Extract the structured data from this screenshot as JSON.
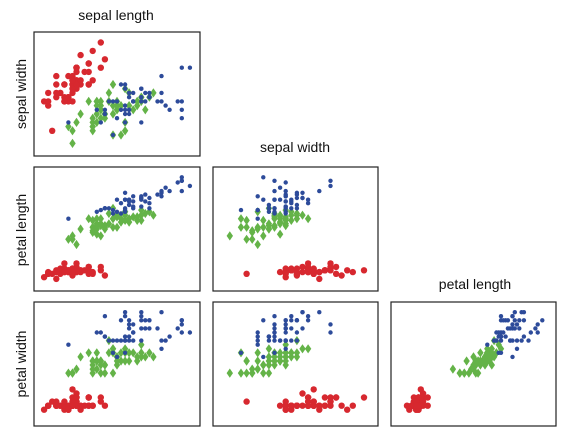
{
  "chart_data": {
    "type": "scatter",
    "layout": "lower-triangular scatterplot matrix",
    "variables": [
      "sepal length",
      "sepal width",
      "petal length",
      "petal width"
    ],
    "column_titles": [
      "sepal length",
      "sepal width",
      "petal length"
    ],
    "row_labels": [
      "sepal width",
      "petal length",
      "petal width"
    ],
    "axis_ticks": "none",
    "grid": false,
    "legend": "none",
    "series": [
      {
        "color": "#d7282f",
        "marker": "circle",
        "points": [
          [
            5.1,
            3.5,
            1.4,
            0.2
          ],
          [
            4.9,
            3.0,
            1.4,
            0.2
          ],
          [
            4.7,
            3.2,
            1.3,
            0.2
          ],
          [
            4.6,
            3.1,
            1.5,
            0.2
          ],
          [
            5.0,
            3.6,
            1.4,
            0.2
          ],
          [
            5.4,
            3.9,
            1.7,
            0.4
          ],
          [
            4.6,
            3.4,
            1.4,
            0.3
          ],
          [
            5.0,
            3.4,
            1.5,
            0.2
          ],
          [
            4.4,
            2.9,
            1.4,
            0.2
          ],
          [
            4.9,
            3.1,
            1.5,
            0.1
          ],
          [
            5.4,
            3.7,
            1.5,
            0.2
          ],
          [
            4.8,
            3.4,
            1.6,
            0.2
          ],
          [
            4.8,
            3.0,
            1.4,
            0.1
          ],
          [
            4.3,
            3.0,
            1.1,
            0.1
          ],
          [
            5.8,
            4.0,
            1.2,
            0.2
          ],
          [
            5.7,
            4.4,
            1.5,
            0.4
          ],
          [
            5.4,
            3.9,
            1.3,
            0.4
          ],
          [
            5.1,
            3.5,
            1.4,
            0.3
          ],
          [
            5.7,
            3.8,
            1.7,
            0.3
          ],
          [
            5.1,
            3.8,
            1.5,
            0.3
          ],
          [
            5.4,
            3.4,
            1.7,
            0.2
          ],
          [
            5.1,
            3.7,
            1.5,
            0.4
          ],
          [
            4.6,
            3.6,
            1.0,
            0.2
          ],
          [
            5.1,
            3.3,
            1.7,
            0.5
          ],
          [
            4.8,
            3.4,
            1.9,
            0.2
          ],
          [
            5.0,
            3.0,
            1.6,
            0.2
          ],
          [
            5.0,
            3.4,
            1.6,
            0.4
          ],
          [
            5.2,
            3.5,
            1.5,
            0.2
          ],
          [
            5.2,
            3.4,
            1.4,
            0.2
          ],
          [
            4.7,
            3.2,
            1.6,
            0.2
          ],
          [
            4.8,
            3.1,
            1.6,
            0.2
          ],
          [
            5.4,
            3.4,
            1.5,
            0.4
          ],
          [
            5.2,
            4.1,
            1.5,
            0.1
          ],
          [
            5.5,
            4.2,
            1.4,
            0.2
          ],
          [
            4.9,
            3.1,
            1.5,
            0.2
          ],
          [
            5.0,
            3.2,
            1.2,
            0.2
          ],
          [
            5.5,
            3.5,
            1.3,
            0.2
          ],
          [
            4.9,
            3.6,
            1.4,
            0.1
          ],
          [
            4.4,
            3.0,
            1.3,
            0.2
          ],
          [
            5.1,
            3.4,
            1.5,
            0.2
          ],
          [
            5.0,
            3.5,
            1.3,
            0.3
          ],
          [
            4.5,
            2.3,
            1.3,
            0.3
          ],
          [
            4.4,
            3.2,
            1.3,
            0.2
          ],
          [
            5.0,
            3.5,
            1.6,
            0.6
          ],
          [
            5.1,
            3.8,
            1.9,
            0.4
          ],
          [
            4.8,
            3.0,
            1.4,
            0.3
          ],
          [
            5.1,
            3.8,
            1.6,
            0.2
          ],
          [
            4.6,
            3.2,
            1.4,
            0.2
          ],
          [
            5.3,
            3.7,
            1.5,
            0.2
          ],
          [
            5.0,
            3.3,
            1.4,
            0.2
          ]
        ]
      },
      {
        "color": "#64b348",
        "marker": "diamond",
        "points": [
          [
            7.0,
            3.2,
            4.7,
            1.4
          ],
          [
            6.4,
            3.2,
            4.5,
            1.5
          ],
          [
            6.9,
            3.1,
            4.9,
            1.5
          ],
          [
            5.5,
            2.3,
            4.0,
            1.3
          ],
          [
            6.5,
            2.8,
            4.6,
            1.5
          ],
          [
            5.7,
            2.8,
            4.5,
            1.3
          ],
          [
            6.3,
            3.3,
            4.7,
            1.6
          ],
          [
            4.9,
            2.4,
            3.3,
            1.0
          ],
          [
            6.6,
            2.9,
            4.6,
            1.3
          ],
          [
            5.2,
            2.7,
            3.9,
            1.4
          ],
          [
            5.0,
            2.0,
            3.5,
            1.0
          ],
          [
            5.9,
            3.0,
            4.2,
            1.5
          ],
          [
            6.0,
            2.2,
            4.0,
            1.0
          ],
          [
            6.1,
            2.9,
            4.7,
            1.4
          ],
          [
            5.6,
            2.9,
            3.6,
            1.3
          ],
          [
            6.7,
            3.1,
            4.4,
            1.4
          ],
          [
            5.6,
            3.0,
            4.5,
            1.5
          ],
          [
            5.8,
            2.7,
            4.1,
            1.0
          ],
          [
            6.2,
            2.2,
            4.5,
            1.5
          ],
          [
            5.6,
            2.5,
            3.9,
            1.1
          ],
          [
            5.9,
            3.2,
            4.8,
            1.8
          ],
          [
            6.1,
            2.8,
            4.0,
            1.3
          ],
          [
            6.3,
            2.5,
            4.9,
            1.5
          ],
          [
            6.1,
            2.8,
            4.7,
            1.2
          ],
          [
            6.4,
            2.9,
            4.3,
            1.3
          ],
          [
            6.6,
            3.0,
            4.4,
            1.4
          ],
          [
            6.8,
            2.8,
            4.8,
            1.4
          ],
          [
            6.7,
            3.0,
            5.0,
            1.7
          ],
          [
            6.0,
            2.9,
            4.5,
            1.5
          ],
          [
            5.7,
            2.6,
            3.5,
            1.0
          ],
          [
            5.5,
            2.4,
            3.8,
            1.1
          ],
          [
            5.5,
            2.4,
            3.7,
            1.0
          ],
          [
            5.8,
            2.7,
            3.9,
            1.2
          ],
          [
            6.0,
            2.7,
            5.1,
            1.6
          ],
          [
            5.4,
            3.0,
            4.5,
            1.5
          ],
          [
            6.0,
            3.4,
            4.5,
            1.6
          ],
          [
            6.7,
            3.1,
            4.7,
            1.5
          ],
          [
            6.3,
            2.3,
            4.4,
            1.3
          ],
          [
            5.6,
            3.0,
            4.1,
            1.3
          ],
          [
            5.5,
            2.5,
            4.0,
            1.3
          ],
          [
            5.5,
            2.6,
            4.4,
            1.2
          ],
          [
            6.1,
            3.0,
            4.6,
            1.4
          ],
          [
            5.8,
            2.6,
            4.0,
            1.2
          ],
          [
            5.0,
            2.3,
            3.3,
            1.0
          ],
          [
            5.6,
            2.7,
            4.2,
            1.3
          ],
          [
            5.7,
            3.0,
            4.2,
            1.2
          ],
          [
            5.7,
            2.9,
            4.2,
            1.3
          ],
          [
            6.2,
            2.9,
            4.3,
            1.3
          ],
          [
            5.1,
            2.5,
            3.0,
            1.1
          ],
          [
            5.7,
            2.8,
            4.1,
            1.3
          ]
        ]
      },
      {
        "color": "#2d4b9a",
        "marker": "circle",
        "points": [
          [
            6.3,
            3.3,
            6.0,
            2.5
          ],
          [
            5.8,
            2.7,
            5.1,
            1.9
          ],
          [
            7.1,
            3.0,
            5.9,
            2.1
          ],
          [
            6.3,
            2.9,
            5.6,
            1.8
          ],
          [
            6.5,
            3.0,
            5.8,
            2.2
          ],
          [
            7.6,
            3.0,
            6.6,
            2.1
          ],
          [
            4.9,
            2.5,
            4.5,
            1.7
          ],
          [
            7.3,
            2.9,
            6.3,
            1.8
          ],
          [
            6.7,
            2.5,
            5.8,
            1.8
          ],
          [
            7.2,
            3.6,
            6.1,
            2.5
          ],
          [
            6.5,
            3.2,
            5.1,
            2.0
          ],
          [
            6.4,
            2.7,
            5.3,
            1.9
          ],
          [
            6.8,
            3.0,
            5.5,
            2.1
          ],
          [
            5.7,
            2.5,
            5.0,
            2.0
          ],
          [
            5.8,
            2.8,
            5.1,
            2.4
          ],
          [
            6.4,
            3.2,
            5.3,
            2.3
          ],
          [
            6.5,
            3.0,
            5.5,
            1.8
          ],
          [
            7.7,
            3.8,
            6.7,
            2.2
          ],
          [
            7.7,
            2.6,
            6.9,
            2.3
          ],
          [
            6.0,
            2.2,
            5.0,
            1.5
          ],
          [
            6.9,
            3.2,
            5.7,
            2.3
          ],
          [
            5.6,
            2.8,
            4.9,
            2.0
          ],
          [
            7.7,
            2.8,
            6.7,
            2.0
          ],
          [
            6.3,
            2.7,
            4.9,
            1.8
          ],
          [
            6.7,
            3.3,
            5.7,
            2.1
          ],
          [
            7.2,
            3.2,
            6.0,
            1.8
          ],
          [
            6.2,
            2.8,
            4.8,
            1.8
          ],
          [
            6.1,
            3.0,
            4.9,
            1.8
          ],
          [
            6.4,
            2.8,
            5.6,
            2.1
          ],
          [
            7.2,
            3.0,
            5.8,
            1.6
          ],
          [
            7.4,
            2.8,
            6.1,
            1.9
          ],
          [
            7.9,
            3.8,
            6.4,
            2.0
          ],
          [
            6.4,
            2.8,
            5.6,
            2.2
          ],
          [
            6.3,
            2.8,
            5.1,
            1.5
          ],
          [
            6.1,
            2.6,
            5.6,
            1.4
          ],
          [
            7.7,
            3.0,
            6.1,
            2.3
          ],
          [
            6.3,
            3.4,
            5.6,
            2.4
          ],
          [
            6.4,
            3.1,
            5.5,
            1.8
          ],
          [
            6.0,
            3.0,
            4.8,
            1.8
          ],
          [
            6.9,
            3.1,
            5.4,
            2.1
          ],
          [
            6.7,
            3.1,
            5.6,
            2.4
          ],
          [
            6.9,
            3.1,
            5.1,
            2.3
          ],
          [
            5.8,
            2.7,
            5.1,
            1.9
          ],
          [
            6.8,
            3.2,
            5.9,
            2.3
          ],
          [
            6.7,
            3.3,
            5.7,
            2.5
          ],
          [
            6.7,
            3.0,
            5.2,
            2.3
          ],
          [
            6.3,
            2.5,
            5.0,
            1.9
          ],
          [
            6.5,
            3.0,
            5.2,
            2.0
          ],
          [
            6.2,
            3.4,
            5.4,
            2.3
          ],
          [
            5.9,
            3.0,
            5.1,
            1.8
          ]
        ]
      }
    ]
  }
}
